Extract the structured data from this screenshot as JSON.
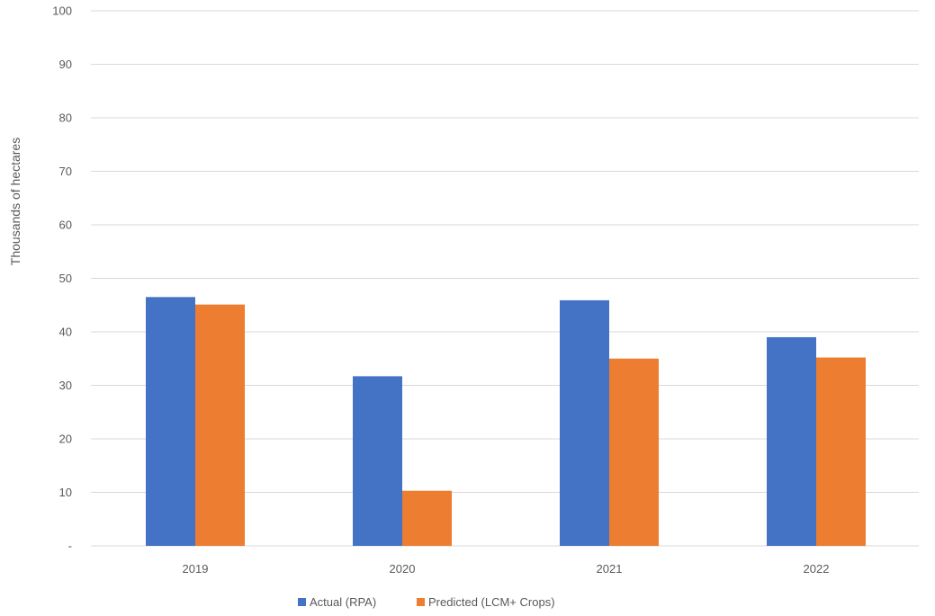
{
  "chart_data": {
    "type": "bar",
    "title": "",
    "xlabel": "",
    "ylabel": "Thousands of hectares",
    "ylim": [
      0,
      100
    ],
    "yticks": [
      {
        "value": 0,
        "label": "-"
      },
      {
        "value": 10,
        "label": "10"
      },
      {
        "value": 20,
        "label": "20"
      },
      {
        "value": 30,
        "label": "30"
      },
      {
        "value": 40,
        "label": "40"
      },
      {
        "value": 50,
        "label": "50"
      },
      {
        "value": 60,
        "label": "60"
      },
      {
        "value": 70,
        "label": "70"
      },
      {
        "value": 80,
        "label": "80"
      },
      {
        "value": 90,
        "label": "90"
      },
      {
        "value": 100,
        "label": "100"
      }
    ],
    "grid": true,
    "legend_position": "bottom",
    "categories": [
      "2019",
      "2020",
      "2021",
      "2022"
    ],
    "series": [
      {
        "name": "Actual (RPA)",
        "color": "#4472c4",
        "values": [
          46.5,
          31.7,
          45.9,
          39.0
        ]
      },
      {
        "name": "Predicted (LCM+ Crops)",
        "color": "#ed7d31",
        "values": [
          45.1,
          10.3,
          35.0,
          35.2
        ]
      }
    ]
  }
}
